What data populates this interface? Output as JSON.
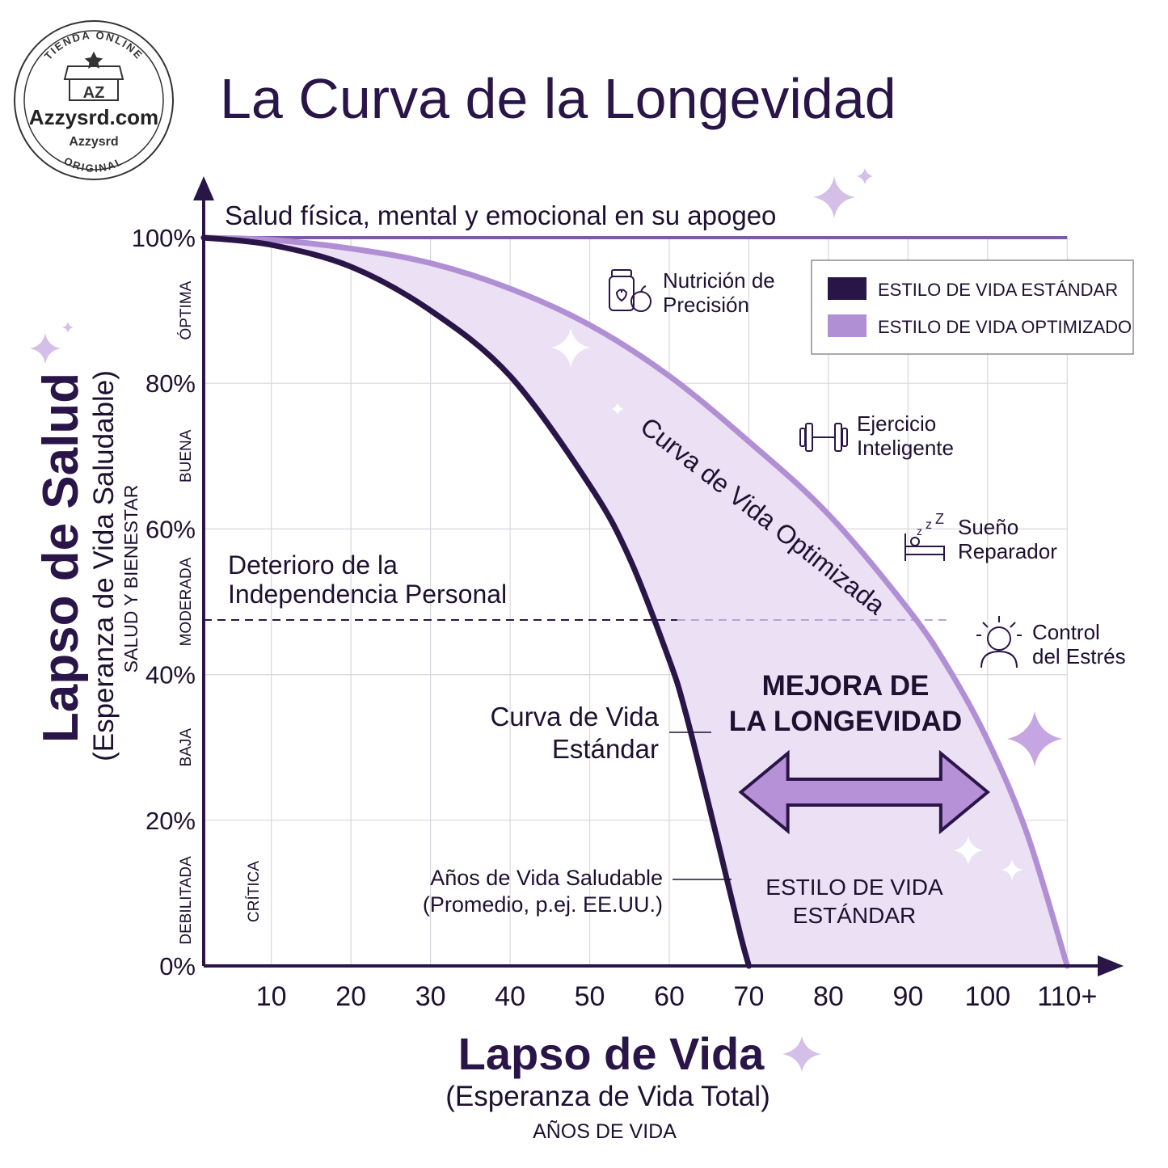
{
  "logo": {
    "ring_top": "TIENDA ONLINE",
    "monogram": "AZ",
    "name": "Azzysrd.com",
    "sub": "Azzysrd",
    "ring_bottom": "ORIGINAL"
  },
  "chart_data": {
    "type": "area",
    "title": "La Curva de la Longevidad",
    "top_label": "Salud física, mental y emocional en su apogeo",
    "ylabel": "Lapso de Salud",
    "ylabel_sub": "(Esperanza de Vida Saludable)",
    "ylabel_small": "SALUD Y BIENESTAR",
    "xlabel": "Lapso de Vida",
    "xlabel_sub": "(Esperanza de Vida Total)",
    "xlabel_small": "AÑOS DE VIDA",
    "x_ticks": [
      "10",
      "20",
      "30",
      "40",
      "50",
      "60",
      "70",
      "80",
      "90",
      "100",
      "110+"
    ],
    "x_tick_values": [
      10,
      20,
      30,
      40,
      50,
      60,
      70,
      80,
      90,
      100,
      110
    ],
    "y_ticks": [
      "0%",
      "20%",
      "40%",
      "60%",
      "80%",
      "100%"
    ],
    "y_tick_values": [
      0,
      20,
      40,
      60,
      80,
      100
    ],
    "xlim": [
      1.5,
      112
    ],
    "ylim": [
      0,
      100
    ],
    "grid": true,
    "legend_position": "top-right",
    "health_levels": [
      {
        "label": "ÓPTIMA",
        "y": 90
      },
      {
        "label": "BUENA",
        "y": 70
      },
      {
        "label": "MODERADA",
        "y": 50
      },
      {
        "label": "BAJA",
        "y": 30
      },
      {
        "label": "DEBILITADA",
        "y": 9
      }
    ],
    "critica_label": "CRÍTICA",
    "series": [
      {
        "name": "ESTILO DE VIDA ESTÁNDAR",
        "color": "#2a1548",
        "x": [
          1.5,
          10,
          20,
          30,
          40,
          50,
          55,
          60,
          62,
          65,
          67,
          69,
          70
        ],
        "y": [
          100,
          99,
          96,
          90,
          81,
          66,
          56,
          42,
          35,
          22,
          13,
          4,
          0
        ]
      },
      {
        "name": "ESTILO DE VIDA OPTIMIZADO",
        "color": "#b18fd4",
        "x": [
          1.5,
          10,
          20,
          30,
          40,
          50,
          60,
          70,
          80,
          90,
          95,
          100,
          105,
          110
        ],
        "y": [
          100,
          99.7,
          98.5,
          96.5,
          93,
          88,
          81,
          72,
          62,
          49,
          41,
          31,
          18,
          0
        ]
      }
    ],
    "reference_line": {
      "y": 100,
      "color": "#7d5aa6"
    },
    "threshold": {
      "y": 47.5,
      "label_line1": "Deterioro de la",
      "label_line2": "Independencia Personal"
    },
    "annotations": {
      "optimized_curve": "Curva de Vida Optimizada",
      "standard_curve_line1": "Curva de Vida",
      "standard_curve_line2": "Estándar",
      "healthy_years_line1": "Años de Vida Saludable",
      "healthy_years_line2": "(Promedio, p.ej. EE.UU.)",
      "improvement_line1": "MEJORA DE",
      "improvement_line2": "LA LONGEVIDAD",
      "improvement_arrow": {
        "from": 69,
        "to": 100
      },
      "area_label_line1": "ESTILO DE VIDA",
      "area_label_line2": "ESTÁNDAR"
    },
    "factors": [
      {
        "icon": "jar-apple-icon",
        "line1": "Nutrición de",
        "line2": "Precisión"
      },
      {
        "icon": "dumbbell-icon",
        "line1": "Ejercicio",
        "line2": "Inteligente"
      },
      {
        "icon": "sleep-bed-icon",
        "line1": "Sueño",
        "line2": "Reparador"
      },
      {
        "icon": "stress-head-icon",
        "line1": "Control",
        "line2": "del Estrés"
      }
    ]
  }
}
